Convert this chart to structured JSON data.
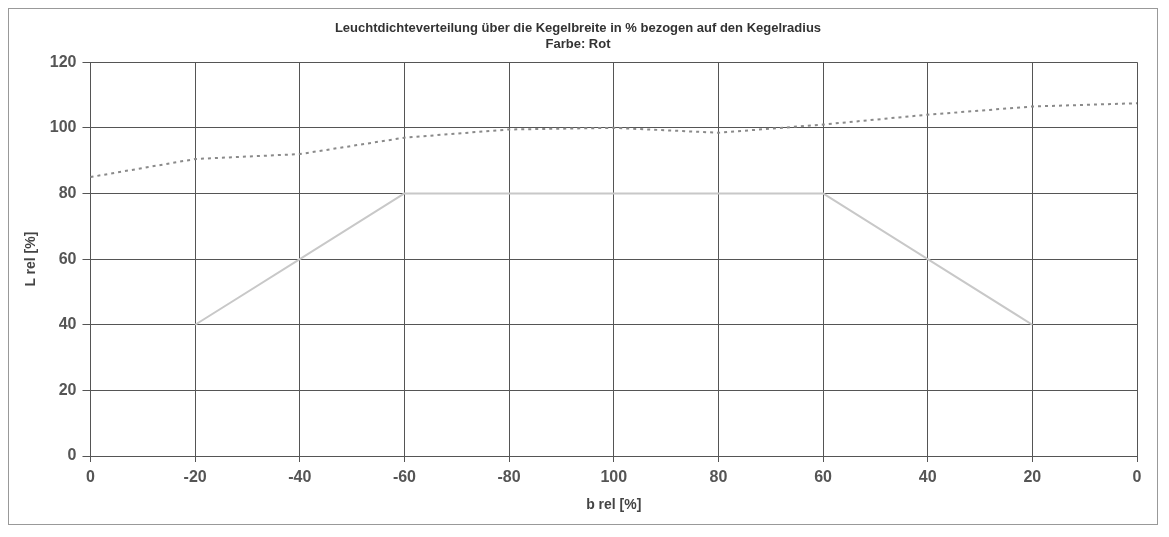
{
  "chart_data": {
    "type": "line",
    "title": "Leuchtdichteverteilung über die Kegelbreite in % bezogen auf den Kegelradius",
    "subtitle": "Farbe: Rot",
    "xlabel": "b rel [%]",
    "ylabel": "L rel [%]",
    "categories": [
      "0",
      "-20",
      "-40",
      "-60",
      "-80",
      "100",
      "80",
      "60",
      "40",
      "20",
      "0"
    ],
    "series": [
      {
        "color": "#8a8a8a",
        "line_style": "dotted",
        "values": [
          85,
          90.5,
          92,
          97,
          99.5,
          100,
          98.5,
          101,
          104,
          106.5,
          107.5
        ]
      },
      {
        "color": "#c8c8c8",
        "line_style": "solid",
        "values": [
          null,
          40,
          60,
          80,
          80,
          80,
          80,
          80,
          60,
          40,
          null
        ]
      }
    ],
    "ylim": [
      0,
      120
    ],
    "yticks": [
      0,
      20,
      40,
      60,
      80,
      100,
      120
    ],
    "grid": true,
    "legend": false
  }
}
